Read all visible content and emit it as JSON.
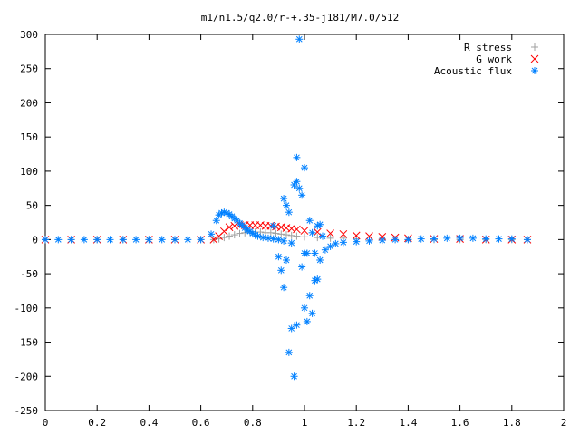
{
  "chart_data": {
    "type": "scatter",
    "title": "m1/n1.5/q2.0/r-+.35-j181/M7.0/512",
    "xlabel": "",
    "ylabel": "",
    "xlim": [
      0,
      2
    ],
    "ylim": [
      -250,
      300
    ],
    "xticks": [
      "0",
      "0.2",
      "0.4",
      "0.6",
      "0.8",
      "1",
      "1.2",
      "1.4",
      "1.6",
      "1.8",
      "2"
    ],
    "yticks": [
      "300",
      "250",
      "200",
      "150",
      "100",
      "50",
      "0",
      "-50",
      "-100",
      "-150",
      "-200",
      "-250"
    ],
    "grid": false,
    "legend_position": "top-right",
    "series": [
      {
        "name": "R stress",
        "marker": "plus",
        "color": "#a0a0a0",
        "x": [
          0.0,
          0.1,
          0.2,
          0.3,
          0.4,
          0.5,
          0.6,
          0.65,
          0.67,
          0.69,
          0.71,
          0.73,
          0.75,
          0.77,
          0.79,
          0.81,
          0.83,
          0.85,
          0.87,
          0.89,
          0.91,
          0.93,
          0.95,
          0.97,
          1.0,
          1.05,
          1.1,
          1.15,
          1.2,
          1.3,
          1.4,
          1.5,
          1.6,
          1.7,
          1.8,
          1.86
        ],
        "y": [
          0,
          0,
          0,
          0,
          0,
          0,
          0,
          0,
          1,
          3,
          5,
          7,
          9,
          10,
          11,
          11,
          11,
          10,
          10,
          9,
          8,
          7,
          6,
          5,
          4,
          3,
          2,
          2,
          1,
          1,
          0,
          0,
          0,
          0,
          0,
          0
        ]
      },
      {
        "name": "G work",
        "marker": "cross",
        "color": "#ff0000",
        "x": [
          0.0,
          0.1,
          0.2,
          0.3,
          0.4,
          0.5,
          0.6,
          0.65,
          0.67,
          0.69,
          0.71,
          0.73,
          0.75,
          0.77,
          0.79,
          0.81,
          0.83,
          0.85,
          0.87,
          0.89,
          0.91,
          0.93,
          0.95,
          0.97,
          1.0,
          1.05,
          1.1,
          1.15,
          1.2,
          1.25,
          1.3,
          1.35,
          1.4,
          1.5,
          1.6,
          1.7,
          1.8,
          1.86
        ],
        "y": [
          0,
          0,
          0,
          0,
          0,
          0,
          0,
          0,
          5,
          12,
          18,
          20,
          21,
          21,
          21,
          21,
          21,
          20,
          20,
          19,
          18,
          17,
          16,
          15,
          13,
          11,
          9,
          8,
          6,
          5,
          4,
          3,
          2,
          1,
          1,
          0,
          0,
          0
        ]
      },
      {
        "name": "Acoustic flux",
        "marker": "star",
        "color": "#0080ff",
        "x": [
          0.0,
          0.05,
          0.1,
          0.15,
          0.2,
          0.25,
          0.3,
          0.35,
          0.4,
          0.45,
          0.5,
          0.55,
          0.6,
          0.64,
          0.66,
          0.67,
          0.68,
          0.69,
          0.7,
          0.71,
          0.72,
          0.73,
          0.74,
          0.75,
          0.76,
          0.77,
          0.78,
          0.79,
          0.8,
          0.81,
          0.82,
          0.84,
          0.86,
          0.88,
          0.9,
          0.92,
          0.92,
          0.93,
          0.94,
          0.95,
          0.96,
          0.97,
          0.97,
          0.98,
          0.98,
          0.99,
          1.0,
          1.0,
          1.01,
          1.02,
          1.03,
          1.04,
          1.05,
          1.06,
          1.07,
          0.88,
          0.9,
          0.91,
          0.92,
          0.93,
          0.94,
          0.95,
          0.96,
          0.97,
          0.99,
          1.0,
          1.01,
          1.02,
          1.03,
          1.04,
          1.05,
          1.06,
          1.08,
          1.1,
          1.12,
          1.15,
          1.2,
          1.25,
          1.3,
          1.35,
          1.4,
          1.45,
          1.5,
          1.55,
          1.6,
          1.65,
          1.7,
          1.75,
          1.8,
          1.86
        ],
        "y": [
          0,
          0,
          0,
          0,
          0,
          0,
          0,
          0,
          0,
          0,
          0,
          0,
          0,
          8,
          28,
          36,
          39,
          40,
          39,
          37,
          34,
          31,
          28,
          24,
          21,
          17,
          14,
          12,
          9,
          7,
          5,
          3,
          2,
          1,
          0,
          -2,
          60,
          50,
          40,
          -5,
          80,
          85,
          120,
          293,
          75,
          65,
          -20,
          105,
          -20,
          28,
          10,
          -20,
          20,
          22,
          5,
          20,
          -25,
          -45,
          -70,
          -30,
          -165,
          -130,
          -200,
          -125,
          -40,
          -100,
          -120,
          -82,
          -108,
          -60,
          -58,
          -30,
          -15,
          -10,
          -6,
          -4,
          -3,
          -2,
          -1,
          0,
          0,
          1,
          1,
          2,
          2,
          2,
          1,
          1,
          1,
          0
        ]
      }
    ]
  }
}
